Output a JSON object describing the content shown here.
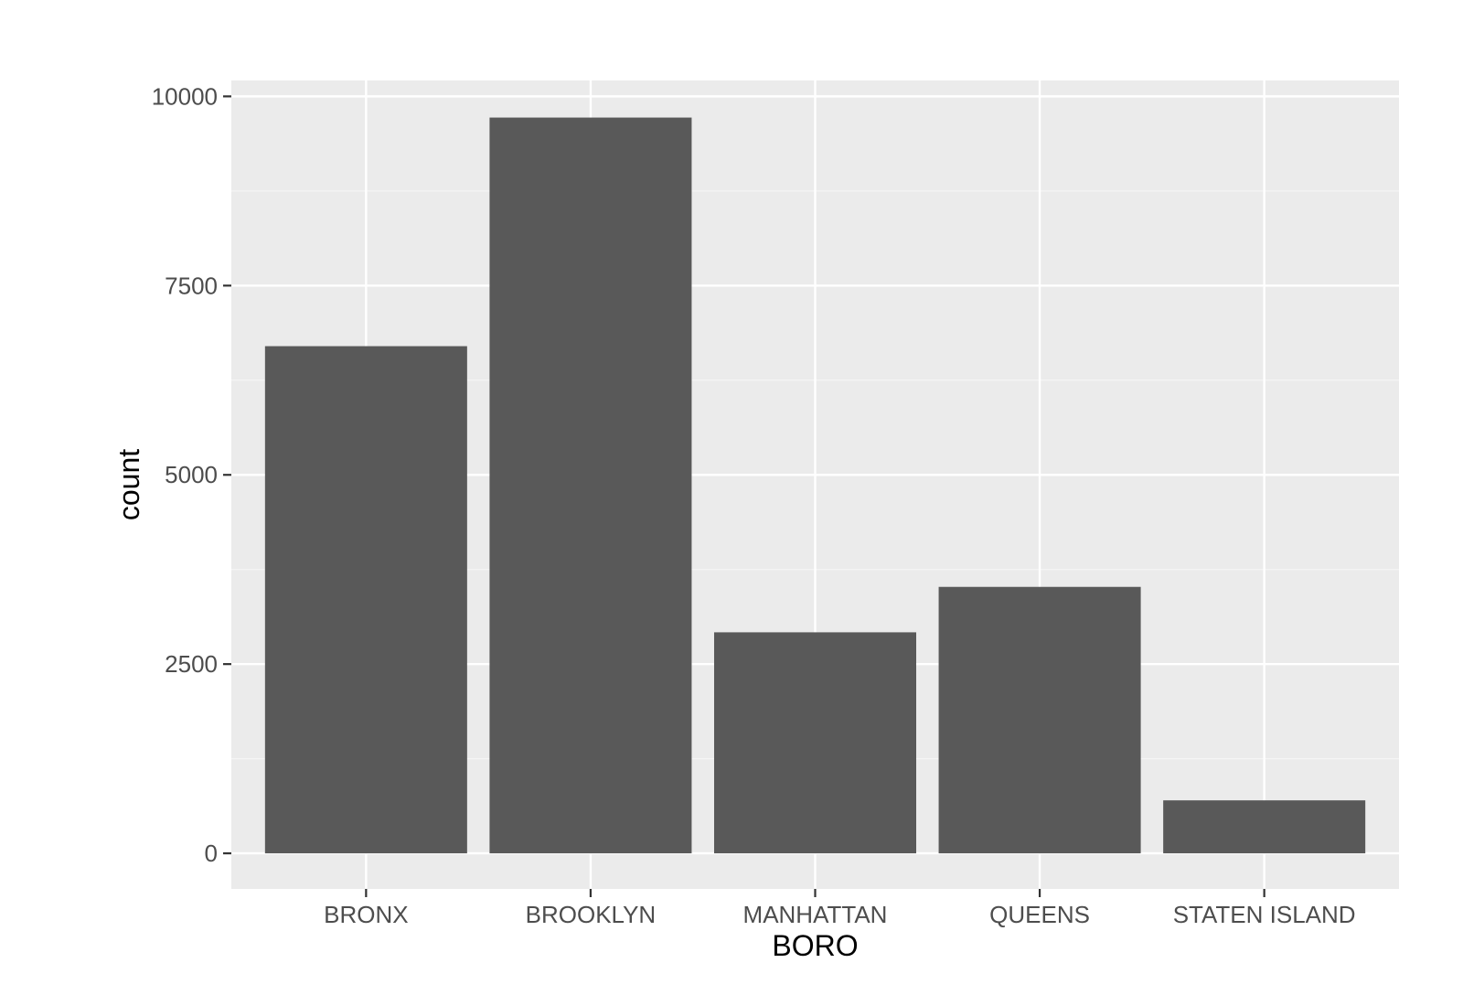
{
  "chart_data": {
    "type": "bar",
    "title": "",
    "xlabel": "BORO",
    "ylabel": "count",
    "categories": [
      "BRONX",
      "BROOKLYN",
      "MANHATTAN",
      "QUEENS",
      "STATEN ISLAND"
    ],
    "values": [
      6700,
      9720,
      2920,
      3520,
      700
    ],
    "ylim": [
      -470,
      10210
    ],
    "y_ticks": [
      0,
      2500,
      5000,
      7500,
      10000
    ],
    "y_tick_labels": [
      "0",
      "2500",
      "5000",
      "7500",
      "10000"
    ],
    "grid": true,
    "legend": "none",
    "colors": {
      "bar": "#595959",
      "panel_background": "#ebebeb",
      "grid_major": "#ffffff",
      "grid_minor": "#f5f5f5",
      "tick_text": "#4d4d4d",
      "axis_title": "#000000",
      "tick_mark": "#333333"
    }
  }
}
